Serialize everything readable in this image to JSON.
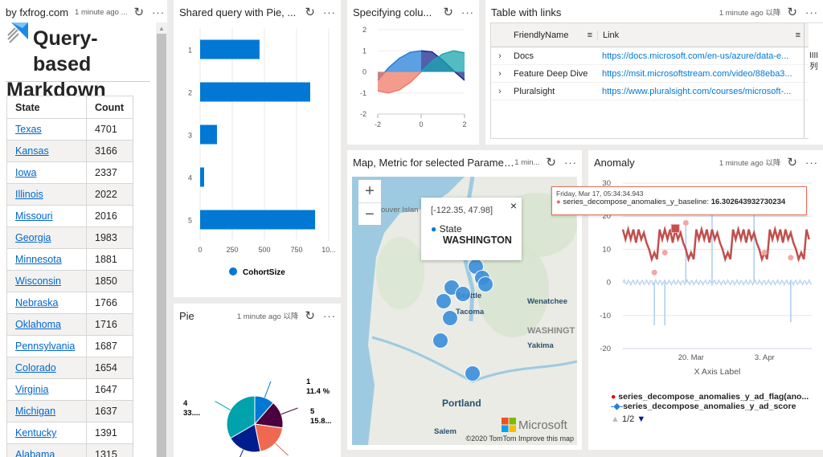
{
  "markdown_tile": {
    "title": "by fxfrog.com",
    "ago": "1 minute ago ...",
    "heading": [
      "Query-based",
      "Markdown"
    ],
    "columns": [
      "State",
      "Count"
    ],
    "rows": [
      [
        "Texas",
        "4701"
      ],
      [
        "Kansas",
        "3166"
      ],
      [
        "Iowa",
        "2337"
      ],
      [
        "Illinois",
        "2022"
      ],
      [
        "Missouri",
        "2016"
      ],
      [
        "Georgia",
        "1983"
      ],
      [
        "Minnesota",
        "1881"
      ],
      [
        "Wisconsin",
        "1850"
      ],
      [
        "Nebraska",
        "1766"
      ],
      [
        "Oklahoma",
        "1716"
      ],
      [
        "Pennsylvania",
        "1687"
      ],
      [
        "Colorado",
        "1654"
      ],
      [
        "Virginia",
        "1647"
      ],
      [
        "Michigan",
        "1637"
      ],
      [
        "Kentucky",
        "1391"
      ],
      [
        "Alabama",
        "1315"
      ]
    ]
  },
  "bar_tile": {
    "title": "Shared query with Pie, ..."
  },
  "pie_tile": {
    "title": "Pie",
    "ago": "1 minute ago 以降"
  },
  "area_tile": {
    "title": "Specifying colu..."
  },
  "table_tile": {
    "title": "Table with links",
    "ago": "1 minute ago 以降",
    "columns": [
      "FriendlyName",
      "Link"
    ],
    "side_label": [
      "IIII",
      "列"
    ],
    "rows": [
      {
        "name": "Docs",
        "link": "https://docs.microsoft.com/en-us/azure/data-e..."
      },
      {
        "name": "Feature Deep Dive",
        "link": "https://msit.microsoftstream.com/video/88eba3..."
      },
      {
        "name": "Pluralsight",
        "link": "https://www.pluralsight.com/courses/microsoft-..."
      }
    ]
  },
  "map_tile": {
    "title": "Map, Metric for selected Parameter",
    "ago": "1 min...",
    "zoom_in": "+",
    "zoom_out": "−",
    "popup": {
      "coords": "[-122.35, 47.98]",
      "label": "State",
      "value": "WASHINGTON",
      "close": "×"
    },
    "places": {
      "island": "ouver Islan",
      "seattle": "Seattle",
      "tacoma": "Tacoma",
      "wenatchee": "Wenatchee",
      "state": "WASHINGT",
      "yakima": "Yakima",
      "portland": "Portland",
      "salem": "Salem",
      "everett": "tt"
    },
    "brand": "Microsoft",
    "attribution": "©2020 TomTom",
    "improve": "Improve this map"
  },
  "anomaly_tile": {
    "title": "Anomaly",
    "ago": "1 minute ago 以降",
    "tooltip": {
      "date": "Friday, Mar 17, 05:34:34.943",
      "series": "series_decompose_anomalies_y_baseline:",
      "value": "16.302643932730234"
    },
    "legend": [
      "series_decompose_anomalies_y_ad_flag(ano...",
      "series_decompose_anomalies_y_ad_score"
    ],
    "pager": "1/2"
  },
  "colors": {
    "accent": "#0078d4",
    "baseline": "#c0504d",
    "score": "#a9cdef",
    "flag": "#f4a6a6"
  },
  "chart_data": [
    {
      "type": "bar",
      "orientation": "horizontal",
      "categories": [
        "1",
        "2",
        "3",
        "4",
        "5"
      ],
      "values": [
        462,
        856,
        131,
        31,
        894
      ],
      "xlim": [
        0,
        1000
      ],
      "xticks": [
        "0",
        "250",
        "500",
        "750",
        "10..."
      ],
      "legend": "CohortSize",
      "grid": true
    },
    {
      "type": "pie",
      "slices": [
        {
          "label": "1",
          "value": 11.4,
          "text": "11.4 %",
          "color": "#0078d4"
        },
        {
          "label": "5",
          "value": 15.8,
          "text": "15.8...",
          "color": "#4b003f"
        },
        {
          "label": "",
          "value": 19.6,
          "color": "#ef6950"
        },
        {
          "label": "",
          "value": 19.8,
          "color": "#001d8d"
        },
        {
          "label": "4",
          "value": 33.4,
          "text": "33....",
          "color": "#00a2ad"
        }
      ]
    },
    {
      "type": "area",
      "xlim": [
        -2,
        2
      ],
      "ylim": [
        -2,
        2
      ],
      "xticks": [
        "-2",
        "0",
        "2"
      ],
      "yticks": [
        "2",
        "1",
        "0",
        "-1",
        "-2"
      ],
      "series": [
        {
          "color": "#2680d9",
          "x": [
            -2,
            -1.5,
            -1,
            -0.5,
            0
          ],
          "y": [
            -0.4,
            0.2,
            0.65,
            0.93,
            1
          ]
        },
        {
          "color": "#ef7a66",
          "x": [
            -2,
            -1.5,
            -1,
            -0.5,
            0
          ],
          "y": [
            -0.9,
            -1,
            -0.85,
            -0.5,
            0
          ]
        },
        {
          "color": "#1a2a8f",
          "x": [
            0,
            0.5,
            1,
            1.5,
            2
          ],
          "y": [
            1,
            0.95,
            0.55,
            0.05,
            -0.4
          ]
        },
        {
          "color": "#1aa6ae",
          "x": [
            0,
            0.5,
            1,
            1.5,
            2
          ],
          "y": [
            0,
            0.5,
            0.85,
            1,
            0.9
          ]
        }
      ]
    },
    {
      "type": "line",
      "xlabel": "X Axis Label",
      "xticks": [
        "20. Mar",
        "3. Apr"
      ],
      "yticks": [
        "30",
        "20",
        "10",
        "0",
        "-10",
        "-20"
      ],
      "ylim": [
        -20,
        30
      ],
      "baseline": {
        "start": "03-07",
        "step_hours": 12,
        "values": [
          16,
          13,
          16,
          13,
          16,
          12,
          16,
          13,
          15,
          12,
          10,
          7,
          9,
          7,
          16,
          13,
          16,
          13,
          16,
          12,
          16,
          13,
          15,
          12,
          10,
          7,
          9,
          7,
          16,
          13,
          16,
          13,
          16,
          12,
          16,
          13,
          15,
          12,
          10,
          7,
          9,
          7,
          16,
          13,
          16,
          13,
          16,
          12,
          16,
          13,
          15,
          12,
          10,
          7,
          9,
          7,
          16,
          13,
          16,
          13,
          16,
          12,
          16,
          13,
          15,
          12,
          10,
          7,
          9,
          7,
          16,
          13
        ]
      },
      "score_spikes": [
        {
          "date": "03-13",
          "y": -13
        },
        {
          "date": "03-15",
          "y": -13
        },
        {
          "date": "03-19",
          "y": 18
        },
        {
          "date": "03-24",
          "y": 22
        },
        {
          "date": "04-01",
          "y": 24
        },
        {
          "date": "04-08",
          "y": -12
        }
      ],
      "flags": [
        {
          "date": "03-13",
          "y": 3
        },
        {
          "date": "03-15",
          "y": 9
        },
        {
          "date": "03-19",
          "y": 18
        },
        {
          "date": "03-24",
          "y": 22
        },
        {
          "date": "04-01",
          "y": 23
        },
        {
          "date": "04-03",
          "y": 9
        },
        {
          "date": "04-08",
          "y": 7.5
        }
      ],
      "highlight": {
        "date": "03-17",
        "y": 16.3
      }
    }
  ]
}
